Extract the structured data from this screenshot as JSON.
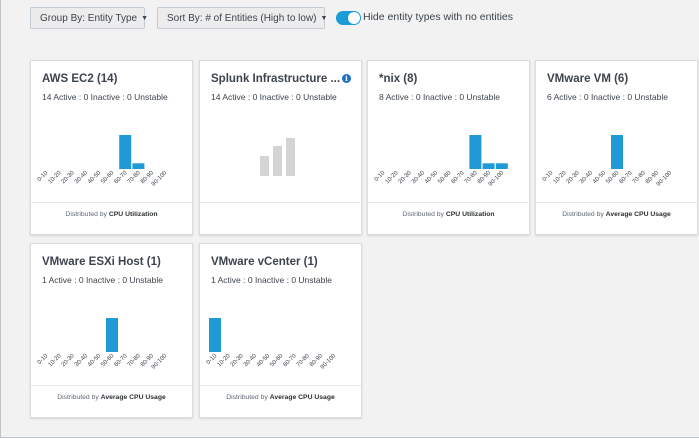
{
  "toolbar": {
    "group_by_label": "Group By: Entity Type",
    "sort_by_label": "Sort By: # of Entities (High to low)",
    "hide_toggle_on": true,
    "hide_toggle_label": "Hide entity types with no entities"
  },
  "colors": {
    "accent": "#1a9cd8",
    "bar": "#1f9ad6",
    "placeholder_bar": "#d4d4d4",
    "info": "#1a6fc9"
  },
  "bucket_labels": [
    "0-10",
    "10-20",
    "20-30",
    "30-40",
    "40-50",
    "50-60",
    "60-70",
    "70-80",
    "80-90",
    "90-100"
  ],
  "cards": [
    {
      "title": "AWS EC2 (14)",
      "stats": "14 Active : 0 Inactive : 0 Unstable",
      "has_chart": true,
      "bucket_values": [
        0,
        0,
        0,
        0,
        0,
        0,
        12,
        2,
        0,
        0
      ],
      "footer_prefix": "Distributed by",
      "footer_metric": "CPU Utilization"
    },
    {
      "title": "Splunk Infrastructure ...",
      "stats": "14 Active : 0 Inactive : 0 Unstable",
      "has_chart": false,
      "has_info_icon": true,
      "info_icon": "info-icon",
      "footer_prefix": "",
      "footer_metric": ""
    },
    {
      "title": "*nix (8)",
      "stats": "8 Active : 0 Inactive : 0 Unstable",
      "has_chart": true,
      "bucket_values": [
        0,
        0,
        0,
        0,
        0,
        0,
        0,
        6,
        1,
        1
      ],
      "footer_prefix": "Distributed by",
      "footer_metric": "CPU Utilization"
    },
    {
      "title": "VMware VM (6)",
      "stats": "6 Active : 0 Inactive : 0 Unstable",
      "has_chart": true,
      "bucket_values": [
        0,
        0,
        0,
        0,
        0,
        6,
        0,
        0,
        0,
        0
      ],
      "footer_prefix": "Distributed by",
      "footer_metric": "Average CPU Usage"
    },
    {
      "title": "VMware ESXi Host (1)",
      "stats": "1 Active : 0 Inactive : 0 Unstable",
      "has_chart": true,
      "bucket_values": [
        0,
        0,
        0,
        0,
        0,
        1,
        0,
        0,
        0,
        0
      ],
      "footer_prefix": "Distributed by",
      "footer_metric": "Average CPU Usage"
    },
    {
      "title": "VMware vCenter (1)",
      "stats": "1 Active : 0 Inactive : 0 Unstable",
      "has_chart": true,
      "bucket_values": [
        1,
        0,
        0,
        0,
        0,
        0,
        0,
        0,
        0,
        0
      ],
      "footer_prefix": "Distributed by",
      "footer_metric": "Average CPU Usage"
    }
  ]
}
